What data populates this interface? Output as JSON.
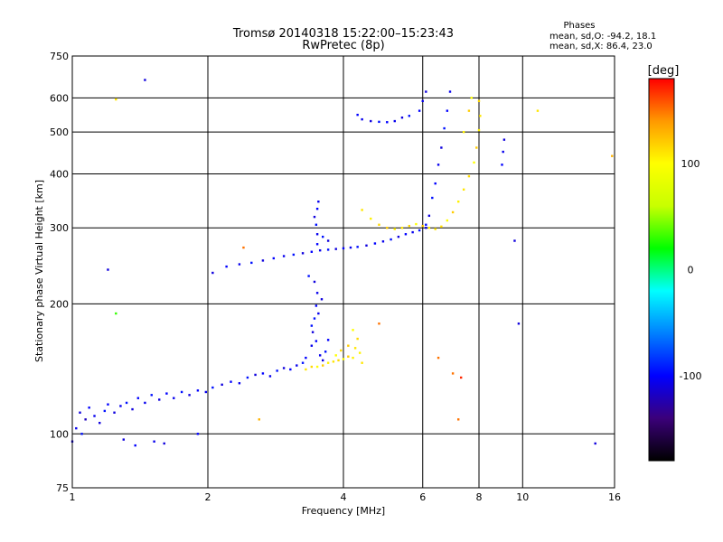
{
  "chart_data": {
    "type": "scatter",
    "title": "Tromsø 20140318 15:22:00–15:23:43",
    "subtitle": "RwPretec (8p)",
    "xlabel": "Frequency [MHz]",
    "ylabel": "Stationary phase Virtual Height [km]",
    "x_scale": "log2",
    "y_scale": "log",
    "xlim": [
      1,
      16
    ],
    "ylim": [
      75,
      750
    ],
    "x_ticks": [
      "1",
      "2",
      "4",
      "6",
      "8",
      "10",
      "16"
    ],
    "y_ticks": [
      "75",
      "100",
      "200",
      "300",
      "400",
      "500",
      "600",
      "750"
    ],
    "grid": true,
    "phases_box": {
      "title": "Phases",
      "line1": "mean, sd,O: -94.2, 18.1",
      "line2": "mean, sd,X:  86.4, 23.0"
    },
    "colorbar": {
      "label": "[deg]",
      "range": [
        -180,
        180
      ],
      "ticks": [
        "100",
        "0",
        "-100"
      ],
      "colors": [
        "#000000",
        "#3b007a",
        "#0000ff",
        "#0080ff",
        "#00ffff",
        "#00ff00",
        "#c8ff00",
        "#ffff00",
        "#ff9900",
        "#ff0000"
      ]
    },
    "series": [
      {
        "values": [
          [
            1.0,
            96,
            -110
          ],
          [
            1.02,
            103,
            -105
          ],
          [
            1.04,
            112,
            -110
          ],
          [
            1.05,
            100,
            -95
          ],
          [
            1.07,
            108,
            -120
          ],
          [
            1.09,
            115,
            -100
          ],
          [
            1.12,
            110,
            -105
          ],
          [
            1.15,
            106,
            -110
          ],
          [
            1.18,
            113,
            -95
          ],
          [
            1.2,
            117,
            -100
          ],
          [
            1.24,
            112,
            -110
          ],
          [
            1.28,
            116,
            -105
          ],
          [
            1.32,
            118,
            -95
          ],
          [
            1.36,
            114,
            -110
          ],
          [
            1.4,
            121,
            -100
          ],
          [
            1.45,
            118,
            -105
          ],
          [
            1.5,
            123,
            -95
          ],
          [
            1.56,
            120,
            -110
          ],
          [
            1.62,
            124,
            -100
          ],
          [
            1.68,
            121,
            -105
          ],
          [
            1.75,
            125,
            -95
          ],
          [
            1.82,
            123,
            -110
          ],
          [
            1.9,
            126,
            -100
          ],
          [
            1.98,
            125,
            -105
          ],
          [
            2.05,
            128,
            -95
          ],
          [
            2.15,
            130,
            -110
          ],
          [
            2.25,
            132,
            -100
          ],
          [
            2.35,
            131,
            -105
          ],
          [
            2.45,
            135,
            -95
          ],
          [
            2.55,
            137,
            -110
          ],
          [
            2.65,
            138,
            -100
          ],
          [
            2.75,
            136,
            -105
          ],
          [
            2.85,
            140,
            -95
          ],
          [
            2.95,
            142,
            -110
          ],
          [
            3.05,
            141,
            -100
          ],
          [
            3.15,
            144,
            -105
          ],
          [
            3.25,
            146,
            -95
          ],
          [
            3.3,
            150,
            -100
          ],
          [
            3.4,
            160,
            -105
          ],
          [
            3.42,
            172,
            -110
          ],
          [
            3.45,
            185,
            -95
          ],
          [
            3.48,
            198,
            -100
          ],
          [
            3.5,
            212,
            -105
          ],
          [
            3.45,
            225,
            -110
          ],
          [
            3.4,
            178,
            -95
          ],
          [
            3.48,
            164,
            -100
          ],
          [
            3.55,
            152,
            -105
          ],
          [
            3.6,
            148,
            -110
          ],
          [
            3.65,
            155,
            -95
          ],
          [
            3.7,
            165,
            -100
          ],
          [
            3.52,
            190,
            -105
          ],
          [
            3.58,
            205,
            -110
          ],
          [
            3.35,
            232,
            -95
          ],
          [
            1.3,
            97,
            -110
          ],
          [
            1.38,
            94,
            -100
          ],
          [
            1.52,
            96,
            -105
          ]
        ]
      },
      {
        "values": [
          [
            3.3,
            141,
            110
          ],
          [
            3.4,
            143,
            115
          ],
          [
            3.5,
            143,
            100
          ],
          [
            3.6,
            144,
            120
          ],
          [
            3.7,
            146,
            105
          ],
          [
            3.8,
            147,
            110
          ],
          [
            3.9,
            148,
            115
          ],
          [
            4.0,
            149,
            100
          ],
          [
            4.1,
            151,
            120
          ],
          [
            4.2,
            150,
            105
          ],
          [
            4.25,
            158,
            110
          ],
          [
            4.3,
            166,
            115
          ],
          [
            4.2,
            174,
            100
          ],
          [
            4.1,
            160,
            120
          ],
          [
            4.35,
            154,
            105
          ],
          [
            4.4,
            146,
            110
          ],
          [
            3.95,
            156,
            115
          ],
          [
            3.85,
            152,
            100
          ]
        ]
      },
      {
        "values": [
          [
            2.05,
            236,
            -110
          ],
          [
            2.2,
            244,
            -100
          ],
          [
            2.35,
            247,
            -105
          ],
          [
            2.5,
            249,
            -95
          ],
          [
            2.65,
            252,
            -110
          ],
          [
            2.8,
            255,
            -100
          ],
          [
            2.95,
            258,
            -105
          ],
          [
            3.1,
            260,
            -95
          ],
          [
            3.25,
            262,
            -110
          ],
          [
            3.4,
            264,
            -100
          ],
          [
            3.55,
            266,
            -105
          ],
          [
            3.7,
            267,
            -95
          ],
          [
            3.85,
            268,
            -110
          ],
          [
            4.0,
            269,
            -100
          ],
          [
            4.15,
            270,
            -105
          ],
          [
            4.3,
            271,
            -95
          ],
          [
            4.5,
            273,
            -110
          ],
          [
            4.7,
            276,
            -100
          ],
          [
            4.9,
            279,
            -105
          ],
          [
            5.1,
            282,
            -95
          ],
          [
            5.3,
            286,
            -110
          ],
          [
            5.5,
            290,
            -100
          ],
          [
            5.7,
            293,
            -105
          ],
          [
            5.9,
            296,
            -95
          ],
          [
            6.1,
            300,
            -110
          ],
          [
            3.5,
            275,
            -100
          ],
          [
            3.5,
            290,
            -105
          ],
          [
            3.48,
            305,
            -95
          ],
          [
            3.45,
            318,
            -110
          ],
          [
            3.5,
            332,
            -100
          ],
          [
            3.52,
            345,
            -105
          ],
          [
            3.6,
            286,
            -95
          ],
          [
            3.7,
            280,
            -110
          ]
        ]
      },
      {
        "values": [
          [
            4.4,
            330,
            110
          ],
          [
            4.6,
            315,
            105
          ],
          [
            4.8,
            305,
            115
          ],
          [
            5.0,
            300,
            120
          ],
          [
            5.2,
            298,
            105
          ],
          [
            5.4,
            300,
            110
          ],
          [
            5.6,
            303,
            115
          ],
          [
            5.8,
            306,
            100
          ],
          [
            6.0,
            303,
            120
          ],
          [
            6.2,
            300,
            105
          ],
          [
            6.4,
            298,
            110
          ],
          [
            6.6,
            302,
            115
          ],
          [
            6.8,
            312,
            100
          ],
          [
            7.0,
            326,
            120
          ],
          [
            7.2,
            345,
            105
          ],
          [
            7.4,
            368,
            110
          ],
          [
            7.6,
            395,
            115
          ],
          [
            7.8,
            425,
            100
          ],
          [
            7.9,
            460,
            120
          ],
          [
            8.0,
            505,
            105
          ],
          [
            8.05,
            545,
            110
          ],
          [
            8.0,
            590,
            115
          ],
          [
            7.7,
            600,
            100
          ],
          [
            7.6,
            560,
            120
          ],
          [
            7.4,
            500,
            105
          ]
        ]
      },
      {
        "values": [
          [
            4.3,
            548,
            -100
          ],
          [
            4.4,
            535,
            -105
          ],
          [
            4.6,
            530,
            -110
          ],
          [
            4.8,
            528,
            -95
          ],
          [
            5.0,
            527,
            -100
          ],
          [
            5.2,
            530,
            -105
          ],
          [
            5.4,
            540,
            -110
          ],
          [
            5.6,
            545,
            -95
          ],
          [
            5.9,
            560,
            -100
          ],
          [
            6.0,
            590,
            -105
          ],
          [
            6.1,
            620,
            -110
          ],
          [
            6.3,
            352,
            -95
          ],
          [
            6.4,
            380,
            -100
          ],
          [
            6.5,
            420,
            -105
          ],
          [
            6.6,
            460,
            -110
          ],
          [
            6.7,
            510,
            -95
          ],
          [
            6.8,
            560,
            -100
          ],
          [
            6.9,
            620,
            -105
          ],
          [
            6.2,
            320,
            -110
          ],
          [
            6.1,
            305,
            -95
          ],
          [
            9.0,
            420,
            -100
          ],
          [
            9.05,
            450,
            -105
          ],
          [
            9.1,
            480,
            -110
          ]
        ]
      },
      {
        "values": [
          [
            1.45,
            660,
            -110
          ],
          [
            1.25,
            595,
            110
          ],
          [
            10.8,
            560,
            110
          ],
          [
            1.2,
            240,
            -110
          ],
          [
            1.25,
            190,
            30
          ],
          [
            2.4,
            270,
            150
          ],
          [
            4.8,
            180,
            150
          ],
          [
            6.5,
            150,
            150
          ],
          [
            7.0,
            138,
            150
          ],
          [
            7.3,
            135,
            170
          ],
          [
            7.2,
            108,
            150
          ],
          [
            9.6,
            280,
            -110
          ],
          [
            9.8,
            180,
            -110
          ],
          [
            14.5,
            95,
            -110
          ],
          [
            15.8,
            440,
            130
          ],
          [
            1.6,
            95,
            -110
          ],
          [
            1.9,
            100,
            -100
          ],
          [
            2.6,
            108,
            130
          ]
        ]
      }
    ]
  }
}
